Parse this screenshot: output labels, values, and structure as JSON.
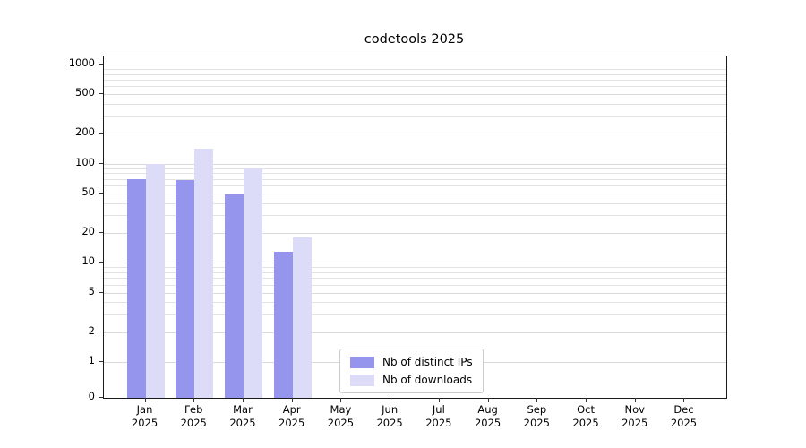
{
  "title": "codetools 2025",
  "chart_data": {
    "type": "bar",
    "title": "codetools 2025",
    "categories": [
      "Jan",
      "Feb",
      "Mar",
      "Apr",
      "May",
      "Jun",
      "Jul",
      "Aug",
      "Sep",
      "Oct",
      "Nov",
      "Dec"
    ],
    "year": "2025",
    "series": [
      {
        "name": "Nb of distinct IPs",
        "color": "#9595ee",
        "values": [
          70,
          68,
          49,
          13,
          0,
          0,
          0,
          0,
          0,
          0,
          0,
          0
        ]
      },
      {
        "name": "Nb of downloads",
        "color": "#dcdcf9",
        "values": [
          100,
          140,
          90,
          18,
          0,
          0,
          0,
          0,
          0,
          0,
          0,
          0
        ]
      }
    ],
    "yticks": [
      0,
      1,
      2,
      5,
      10,
      20,
      50,
      100,
      200,
      500,
      1000
    ],
    "yscale": "symlog",
    "ylim": [
      0,
      1200
    ],
    "grid": true,
    "legend_position": "lower center"
  }
}
